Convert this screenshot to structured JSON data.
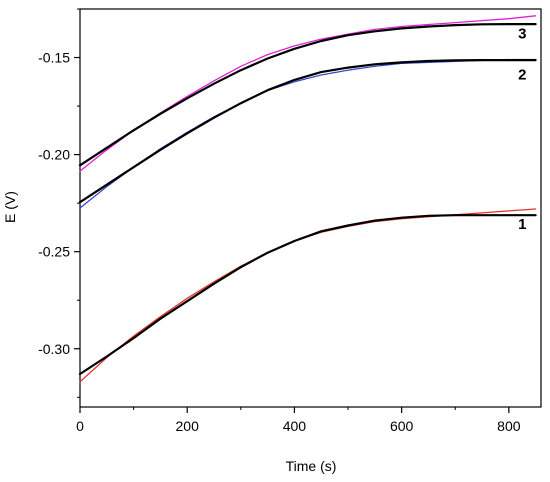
{
  "chart_data": {
    "type": "line",
    "title": "",
    "xlabel": "Time (s)",
    "ylabel": "E (V)",
    "xlim": [
      0,
      860
    ],
    "ylim": [
      -0.33,
      -0.125
    ],
    "x_ticks": [
      0,
      200,
      400,
      600,
      800
    ],
    "x_tick_labels": [
      "0",
      "200",
      "400",
      "600",
      "800"
    ],
    "y_ticks": [
      -0.15,
      -0.2,
      -0.25,
      -0.3
    ],
    "y_tick_labels": [
      "-0.15",
      "-0.20",
      "-0.25",
      "-0.30"
    ],
    "grid": false,
    "legend": "none",
    "curve_labels": [
      {
        "text": "1",
        "x": 825,
        "y": -0.2315
      },
      {
        "text": "2",
        "x": 825,
        "y": -0.1545
      },
      {
        "text": "3",
        "x": 825,
        "y": -0.1335
      }
    ],
    "series": [
      {
        "color": "#000000",
        "style": "fit",
        "x": [
          0,
          50,
          100,
          150,
          200,
          250,
          300,
          350,
          400,
          450,
          500,
          550,
          600,
          650,
          700,
          750,
          800,
          850
        ],
        "y": [
          -0.313,
          -0.304,
          -0.2945,
          -0.2845,
          -0.2755,
          -0.2665,
          -0.258,
          -0.2505,
          -0.2445,
          -0.2395,
          -0.2365,
          -0.234,
          -0.2325,
          -0.2315,
          -0.2312,
          -0.2312,
          -0.2312,
          -0.2312
        ]
      },
      {
        "color": "#e0342a",
        "style": "data",
        "x": [
          0,
          50,
          100,
          150,
          200,
          250,
          300,
          350,
          400,
          450,
          500,
          550,
          600,
          650,
          700,
          750,
          800,
          850
        ],
        "y": [
          -0.317,
          -0.3045,
          -0.2935,
          -0.2835,
          -0.274,
          -0.2655,
          -0.2575,
          -0.2505,
          -0.2445,
          -0.24,
          -0.237,
          -0.2345,
          -0.233,
          -0.232,
          -0.231,
          -0.23,
          -0.229,
          -0.228
        ]
      },
      {
        "color": "#000000",
        "style": "fit",
        "x": [
          0,
          50,
          100,
          150,
          200,
          250,
          300,
          350,
          400,
          450,
          500,
          550,
          600,
          650,
          700,
          750,
          800,
          850
        ],
        "y": [
          -0.2245,
          -0.2155,
          -0.2065,
          -0.1975,
          -0.189,
          -0.181,
          -0.1735,
          -0.1668,
          -0.1615,
          -0.1575,
          -0.1552,
          -0.1535,
          -0.1525,
          -0.1518,
          -0.1515,
          -0.1513,
          -0.1513,
          -0.1513
        ]
      },
      {
        "color": "#2f3fc9",
        "style": "data",
        "x": [
          0,
          50,
          100,
          150,
          200,
          250,
          300,
          350,
          400,
          450,
          500,
          550,
          600,
          650,
          700,
          750,
          800,
          850
        ],
        "y": [
          -0.2275,
          -0.2165,
          -0.2065,
          -0.197,
          -0.1885,
          -0.1805,
          -0.1735,
          -0.167,
          -0.1625,
          -0.159,
          -0.1565,
          -0.1545,
          -0.153,
          -0.1525,
          -0.152,
          -0.1515,
          -0.151,
          -0.151
        ]
      },
      {
        "color": "#000000",
        "style": "fit",
        "x": [
          0,
          50,
          100,
          150,
          200,
          250,
          300,
          350,
          400,
          450,
          500,
          550,
          600,
          650,
          700,
          750,
          800,
          850
        ],
        "y": [
          -0.2055,
          -0.1965,
          -0.1875,
          -0.179,
          -0.171,
          -0.1635,
          -0.1565,
          -0.1505,
          -0.1455,
          -0.1415,
          -0.1385,
          -0.1365,
          -0.135,
          -0.134,
          -0.1333,
          -0.1329,
          -0.1328,
          -0.1328
        ]
      },
      {
        "color": "#e020d8",
        "style": "data",
        "x": [
          0,
          50,
          100,
          150,
          200,
          250,
          300,
          350,
          400,
          450,
          500,
          550,
          600,
          650,
          700,
          750,
          800,
          850
        ],
        "y": [
          -0.2085,
          -0.1975,
          -0.1875,
          -0.1785,
          -0.17,
          -0.162,
          -0.1545,
          -0.1485,
          -0.144,
          -0.1405,
          -0.138,
          -0.1355,
          -0.134,
          -0.133,
          -0.132,
          -0.131,
          -0.13,
          -0.1285
        ]
      }
    ]
  }
}
